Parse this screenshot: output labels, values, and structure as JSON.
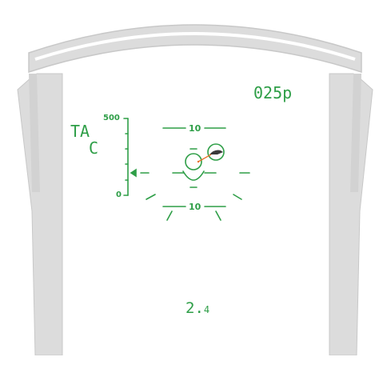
{
  "colors": {
    "hud_green": "#2e9e47",
    "canopy_frame": "#dcdcdc",
    "canopy_frame_edge": "#c8c8c8",
    "target_marker": "#3a3a3a",
    "target_line": "#e8702a"
  },
  "hud": {
    "mode_top": "TA",
    "mode_bottom": "C",
    "heading_readout": "025p",
    "altitude_scale_max": "500",
    "altitude_scale_min": "0",
    "pitch_upper_label": "10",
    "pitch_lower_label": "10",
    "bottom_readout_main": "2.",
    "bottom_readout_small": "4"
  },
  "icons": {
    "target_designator": "target-reticle-icon",
    "flight_path_marker": "flight-path-marker-icon",
    "altitude_caret": "altitude-caret-icon"
  }
}
